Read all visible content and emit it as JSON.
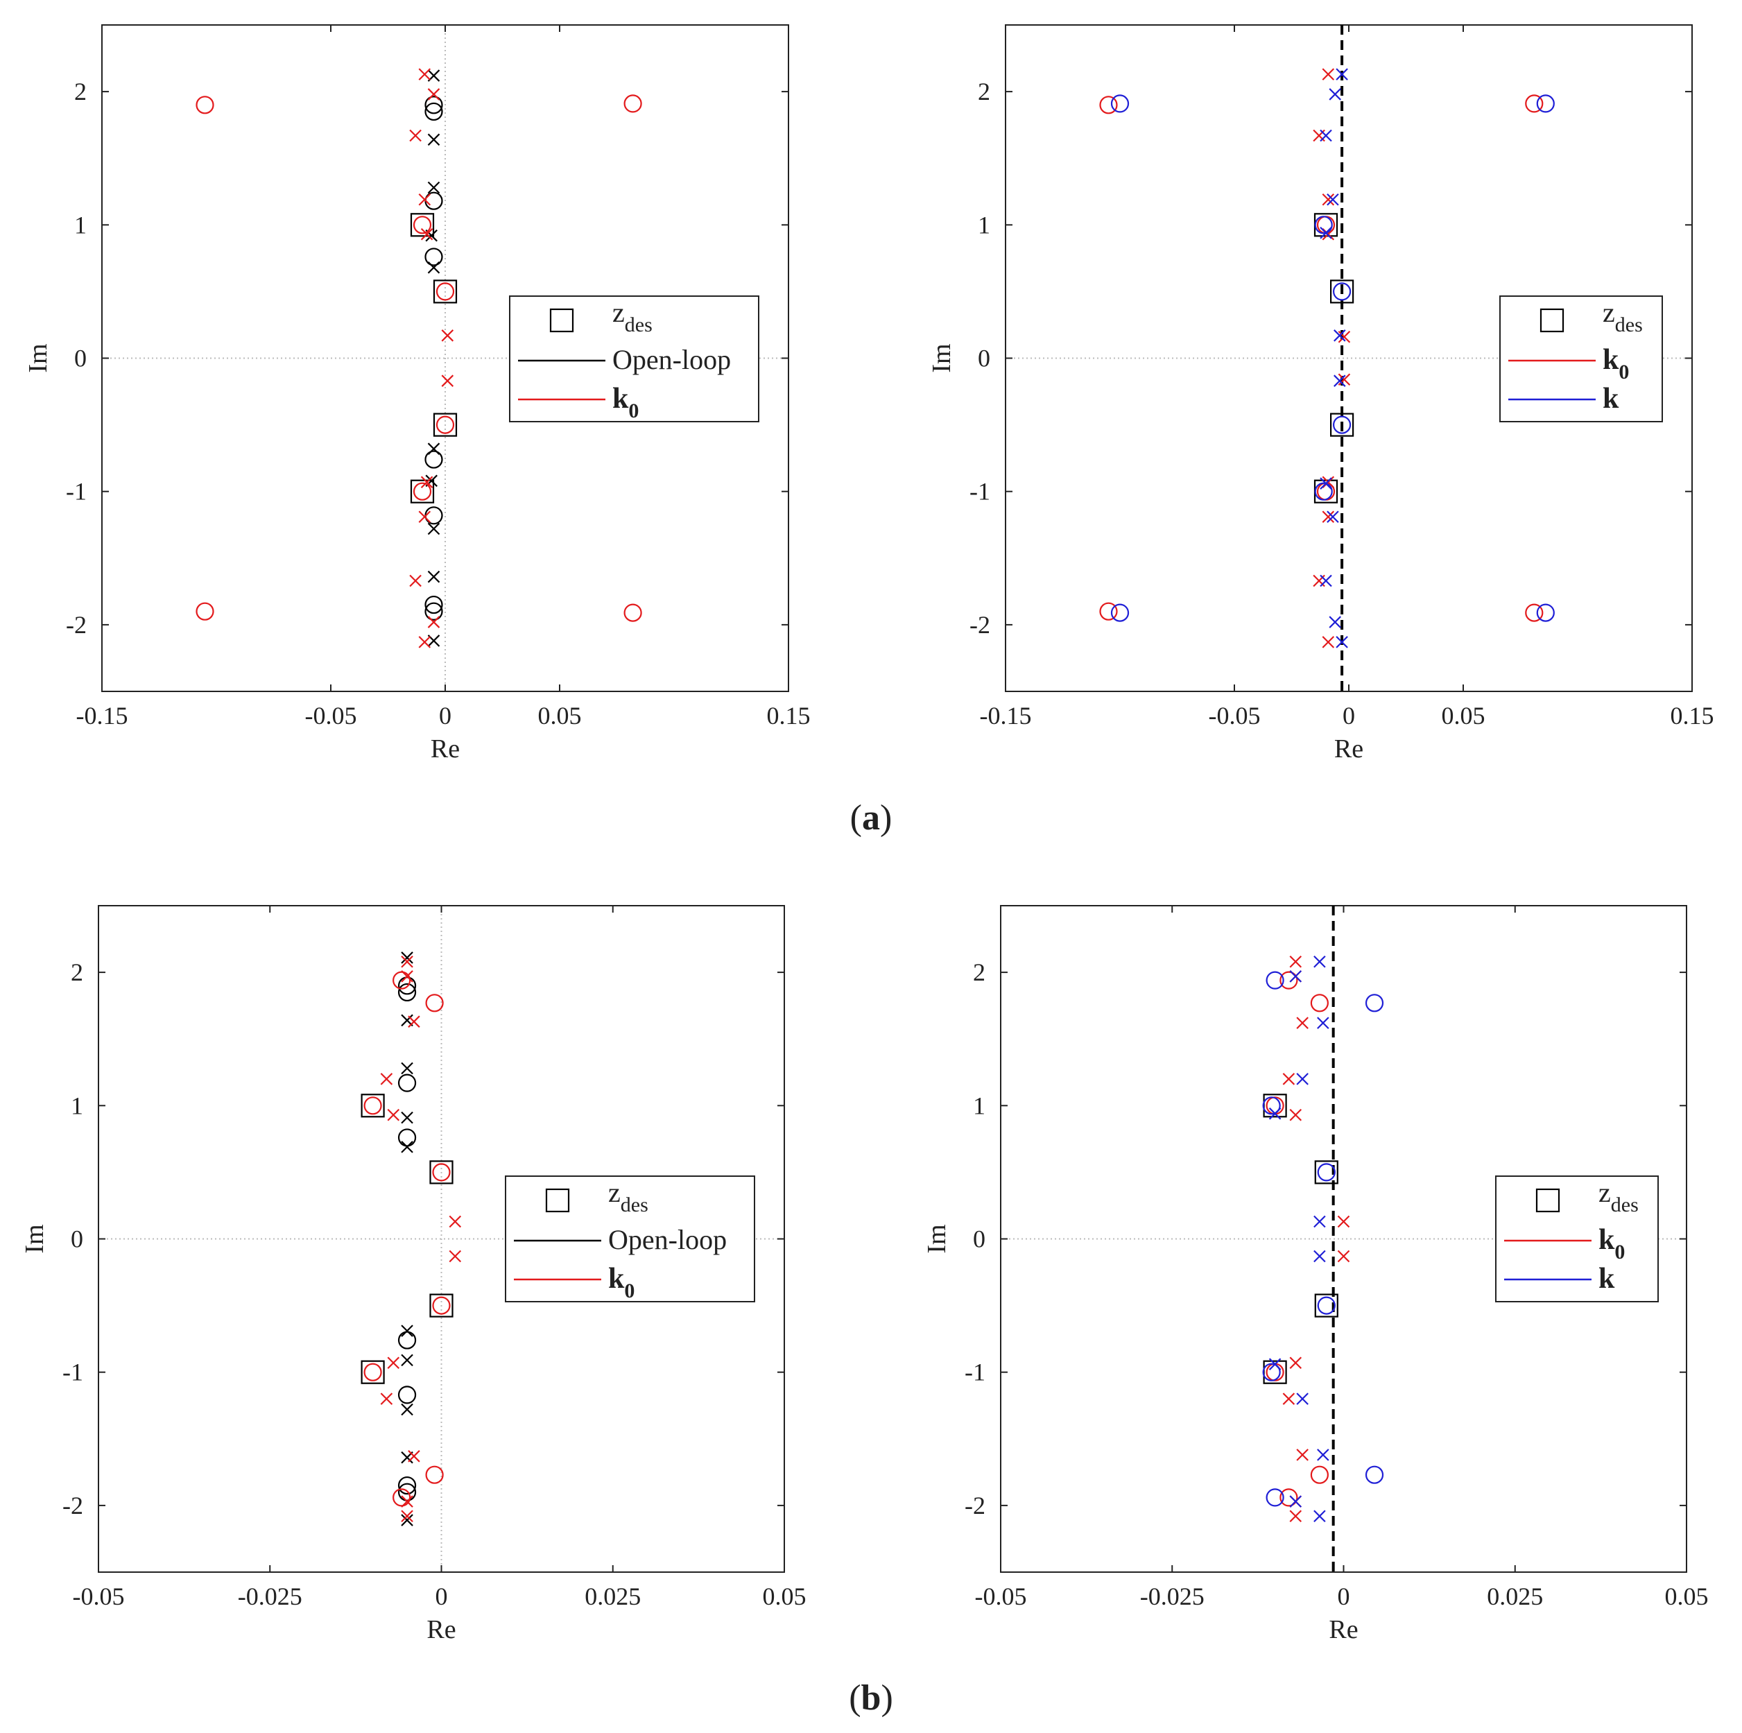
{
  "captions": [
    {
      "open": "(",
      "letter": "a",
      "close": ")"
    },
    {
      "open": "(",
      "letter": "b",
      "close": ")"
    }
  ],
  "colors": {
    "open_loop": "#000000",
    "k0": "#e31a1c",
    "k": "#1f1fd6",
    "zdes": "#000000",
    "axis": "#222222",
    "zero_line": "#bbbbbb"
  },
  "chart_data": [
    {
      "id": "a-left",
      "type": "scatter",
      "xlabel": "Re",
      "ylabel": "Im",
      "xlim": [
        -0.15,
        0.15
      ],
      "ylim": [
        -2.5,
        2.5
      ],
      "xticks": [
        -0.15,
        -0.05,
        0,
        0.05,
        0.15
      ],
      "xtick_labels": [
        "-0.15",
        "-0.05",
        "0",
        "0.05",
        "0.15"
      ],
      "yticks": [
        -2,
        -1,
        0,
        1,
        2
      ],
      "ytick_labels": [
        "-2",
        "-1",
        "0",
        "1",
        "2"
      ],
      "dashed_vline": null,
      "legend": [
        {
          "marker": "square",
          "color": "#000000",
          "label": "z",
          "sub": "des",
          "bold": false
        },
        {
          "marker": "line",
          "color": "#000000",
          "label": "Open-loop",
          "sub": "",
          "bold": false
        },
        {
          "marker": "line",
          "color": "#e31a1c",
          "label": "k",
          "sub": "0",
          "bold": true
        }
      ],
      "series": [
        {
          "name": "z_des",
          "marker": "square",
          "color": "#000000",
          "points": [
            [
              -0.01,
              1.0
            ],
            [
              -0.01,
              -1.0
            ],
            [
              0.0,
              0.5
            ],
            [
              0.0,
              -0.5
            ]
          ]
        },
        {
          "name": "Open-loop poles",
          "marker": "x",
          "color": "#000000",
          "points": [
            [
              -0.005,
              2.12
            ],
            [
              -0.005,
              -2.12
            ],
            [
              -0.005,
              1.64
            ],
            [
              -0.005,
              -1.64
            ],
            [
              -0.005,
              1.28
            ],
            [
              -0.005,
              -1.28
            ],
            [
              -0.006,
              0.92
            ],
            [
              -0.006,
              -0.92
            ],
            [
              -0.005,
              0.68
            ],
            [
              -0.005,
              -0.68
            ]
          ]
        },
        {
          "name": "Open-loop zeros",
          "marker": "circle",
          "color": "#000000",
          "points": [
            [
              -0.005,
              1.9
            ],
            [
              -0.005,
              -1.9
            ],
            [
              -0.005,
              1.85
            ],
            [
              -0.005,
              -1.85
            ],
            [
              -0.005,
              1.18
            ],
            [
              -0.005,
              -1.18
            ],
            [
              -0.005,
              0.76
            ],
            [
              -0.005,
              -0.76
            ]
          ]
        },
        {
          "name": "k0 poles",
          "marker": "x",
          "color": "#e31a1c",
          "points": [
            [
              -0.009,
              2.13
            ],
            [
              -0.009,
              -2.13
            ],
            [
              -0.005,
              1.98
            ],
            [
              -0.005,
              -1.98
            ],
            [
              -0.013,
              1.67
            ],
            [
              -0.013,
              -1.67
            ],
            [
              -0.009,
              1.19
            ],
            [
              -0.009,
              -1.19
            ],
            [
              -0.008,
              0.93
            ],
            [
              -0.008,
              -0.93
            ],
            [
              0.001,
              0.17
            ],
            [
              0.001,
              -0.17
            ]
          ]
        },
        {
          "name": "k0 zeros",
          "marker": "circle",
          "color": "#e31a1c",
          "points": [
            [
              -0.105,
              1.9
            ],
            [
              -0.105,
              -1.9
            ],
            [
              0.082,
              1.91
            ],
            [
              0.082,
              -1.91
            ],
            [
              -0.01,
              1.0
            ],
            [
              -0.01,
              -1.0
            ],
            [
              0.0,
              0.5
            ],
            [
              0.0,
              -0.5
            ]
          ]
        }
      ]
    },
    {
      "id": "a-right",
      "type": "scatter",
      "xlabel": "Re",
      "ylabel": "Im",
      "xlim": [
        -0.15,
        0.15
      ],
      "ylim": [
        -2.5,
        2.5
      ],
      "xticks": [
        -0.15,
        -0.05,
        0,
        0.05,
        0.15
      ],
      "xtick_labels": [
        "-0.15",
        "-0.05",
        "0",
        "0.05",
        "0.15"
      ],
      "yticks": [
        -2,
        -1,
        0,
        1,
        2
      ],
      "ytick_labels": [
        "-2",
        "-1",
        "0",
        "1",
        "2"
      ],
      "dashed_vline": -0.003,
      "legend": [
        {
          "marker": "square",
          "color": "#000000",
          "label": "z",
          "sub": "des",
          "bold": false
        },
        {
          "marker": "line",
          "color": "#e31a1c",
          "label": "k",
          "sub": "0",
          "bold": true
        },
        {
          "marker": "line",
          "color": "#1f1fd6",
          "label": "k",
          "sub": "",
          "bold": true
        }
      ],
      "series": [
        {
          "name": "z_des",
          "marker": "square",
          "color": "#000000",
          "points": [
            [
              -0.01,
              1.0
            ],
            [
              -0.01,
              -1.0
            ],
            [
              -0.003,
              0.5
            ],
            [
              -0.003,
              -0.5
            ]
          ]
        },
        {
          "name": "k0 poles",
          "marker": "x",
          "color": "#e31a1c",
          "points": [
            [
              -0.009,
              2.13
            ],
            [
              -0.009,
              -2.13
            ],
            [
              -0.013,
              1.67
            ],
            [
              -0.013,
              -1.67
            ],
            [
              -0.009,
              1.19
            ],
            [
              -0.009,
              -1.19
            ],
            [
              -0.009,
              0.93
            ],
            [
              -0.009,
              -0.93
            ],
            [
              -0.002,
              0.16
            ],
            [
              -0.002,
              -0.16
            ]
          ]
        },
        {
          "name": "k0 zeros",
          "marker": "circle",
          "color": "#e31a1c",
          "points": [
            [
              -0.105,
              1.9
            ],
            [
              -0.105,
              -1.9
            ],
            [
              0.081,
              1.91
            ],
            [
              0.081,
              -1.91
            ],
            [
              -0.01,
              1.0
            ],
            [
              -0.01,
              -1.0
            ]
          ]
        },
        {
          "name": "k poles",
          "marker": "x",
          "color": "#1f1fd6",
          "points": [
            [
              -0.003,
              2.13
            ],
            [
              -0.003,
              -2.13
            ],
            [
              -0.006,
              1.98
            ],
            [
              -0.006,
              -1.98
            ],
            [
              -0.01,
              1.67
            ],
            [
              -0.01,
              -1.67
            ],
            [
              -0.007,
              1.19
            ],
            [
              -0.007,
              -1.19
            ],
            [
              -0.01,
              0.94
            ],
            [
              -0.01,
              -0.94
            ],
            [
              -0.004,
              0.17
            ],
            [
              -0.004,
              -0.17
            ]
          ]
        },
        {
          "name": "k zeros",
          "marker": "circle",
          "color": "#1f1fd6",
          "points": [
            [
              -0.1,
              1.91
            ],
            [
              -0.1,
              -1.91
            ],
            [
              0.086,
              1.91
            ],
            [
              0.086,
              -1.91
            ],
            [
              -0.011,
              1.0
            ],
            [
              -0.011,
              -1.0
            ],
            [
              -0.003,
              0.5
            ],
            [
              -0.003,
              -0.5
            ]
          ]
        }
      ]
    },
    {
      "id": "b-left",
      "type": "scatter",
      "xlabel": "Re",
      "ylabel": "Im",
      "xlim": [
        -0.05,
        0.05
      ],
      "ylim": [
        -2.5,
        2.5
      ],
      "xticks": [
        -0.05,
        -0.025,
        0,
        0.025,
        0.05
      ],
      "xtick_labels": [
        "-0.05",
        "-0.025",
        "0",
        "0.025",
        "0.05"
      ],
      "yticks": [
        -2,
        -1,
        0,
        1,
        2
      ],
      "ytick_labels": [
        "-2",
        "-1",
        "0",
        "1",
        "2"
      ],
      "dashed_vline": null,
      "legend": [
        {
          "marker": "square",
          "color": "#000000",
          "label": "z",
          "sub": "des",
          "bold": false
        },
        {
          "marker": "line",
          "color": "#000000",
          "label": "Open-loop",
          "sub": "",
          "bold": false
        },
        {
          "marker": "line",
          "color": "#e31a1c",
          "label": "k",
          "sub": "0",
          "bold": true
        }
      ],
      "series": [
        {
          "name": "z_des",
          "marker": "square",
          "color": "#000000",
          "points": [
            [
              -0.01,
              1.0
            ],
            [
              -0.01,
              -1.0
            ],
            [
              0.0,
              0.5
            ],
            [
              0.0,
              -0.5
            ]
          ]
        },
        {
          "name": "Open-loop poles",
          "marker": "x",
          "color": "#000000",
          "points": [
            [
              -0.005,
              2.11
            ],
            [
              -0.005,
              -2.11
            ],
            [
              -0.005,
              1.64
            ],
            [
              -0.005,
              -1.64
            ],
            [
              -0.005,
              1.28
            ],
            [
              -0.005,
              -1.28
            ],
            [
              -0.005,
              0.91
            ],
            [
              -0.005,
              -0.91
            ],
            [
              -0.005,
              0.69
            ],
            [
              -0.005,
              -0.69
            ]
          ]
        },
        {
          "name": "Open-loop zeros",
          "marker": "circle",
          "color": "#000000",
          "points": [
            [
              -0.005,
              1.9
            ],
            [
              -0.005,
              -1.9
            ],
            [
              -0.005,
              1.85
            ],
            [
              -0.005,
              -1.85
            ],
            [
              -0.005,
              1.17
            ],
            [
              -0.005,
              -1.17
            ],
            [
              -0.005,
              0.76
            ],
            [
              -0.005,
              -0.76
            ]
          ]
        },
        {
          "name": "k0 poles",
          "marker": "x",
          "color": "#e31a1c",
          "points": [
            [
              -0.005,
              2.08
            ],
            [
              -0.005,
              -2.08
            ],
            [
              -0.005,
              1.97
            ],
            [
              -0.005,
              -1.97
            ],
            [
              -0.004,
              1.63
            ],
            [
              -0.004,
              -1.63
            ],
            [
              -0.008,
              1.2
            ],
            [
              -0.008,
              -1.2
            ],
            [
              -0.007,
              0.93
            ],
            [
              -0.007,
              -0.93
            ],
            [
              0.002,
              0.13
            ],
            [
              0.002,
              -0.13
            ]
          ]
        },
        {
          "name": "k0 zeros",
          "marker": "circle",
          "color": "#e31a1c",
          "points": [
            [
              -0.0058,
              1.94
            ],
            [
              -0.0058,
              -1.94
            ],
            [
              -0.001,
              1.77
            ],
            [
              -0.001,
              -1.77
            ],
            [
              -0.01,
              1.0
            ],
            [
              -0.01,
              -1.0
            ],
            [
              0.0,
              0.5
            ],
            [
              0.0,
              -0.5
            ]
          ]
        }
      ]
    },
    {
      "id": "b-right",
      "type": "scatter",
      "xlabel": "Re",
      "ylabel": "Im",
      "xlim": [
        -0.05,
        0.05
      ],
      "ylim": [
        -2.5,
        2.5
      ],
      "xticks": [
        -0.05,
        -0.025,
        0,
        0.025,
        0.05
      ],
      "xtick_labels": [
        "-0.05",
        "-0.025",
        "0",
        "0.025",
        "0.05"
      ],
      "yticks": [
        -2,
        -1,
        0,
        1,
        2
      ],
      "ytick_labels": [
        "-2",
        "-1",
        "0",
        "1",
        "2"
      ],
      "dashed_vline": -0.0015,
      "legend": [
        {
          "marker": "square",
          "color": "#000000",
          "label": "z",
          "sub": "des",
          "bold": false
        },
        {
          "marker": "line",
          "color": "#e31a1c",
          "label": "k",
          "sub": "0",
          "bold": true
        },
        {
          "marker": "line",
          "color": "#1f1fd6",
          "label": "k",
          "sub": "",
          "bold": true
        }
      ],
      "series": [
        {
          "name": "z_des",
          "marker": "square",
          "color": "#000000",
          "points": [
            [
              -0.01,
              1.0
            ],
            [
              -0.01,
              -1.0
            ],
            [
              -0.0025,
              0.5
            ],
            [
              -0.0025,
              -0.5
            ]
          ]
        },
        {
          "name": "k0 poles",
          "marker": "x",
          "color": "#e31a1c",
          "points": [
            [
              -0.007,
              2.08
            ],
            [
              -0.007,
              -2.08
            ],
            [
              -0.007,
              1.97
            ],
            [
              -0.007,
              -1.97
            ],
            [
              -0.006,
              1.62
            ],
            [
              -0.006,
              -1.62
            ],
            [
              -0.008,
              1.2
            ],
            [
              -0.008,
              -1.2
            ],
            [
              -0.007,
              0.93
            ],
            [
              -0.007,
              -0.93
            ],
            [
              0.0,
              0.13
            ],
            [
              0.0,
              -0.13
            ]
          ]
        },
        {
          "name": "k0 zeros",
          "marker": "circle",
          "color": "#e31a1c",
          "points": [
            [
              -0.008,
              1.94
            ],
            [
              -0.008,
              -1.94
            ],
            [
              -0.0035,
              1.77
            ],
            [
              -0.0035,
              -1.77
            ],
            [
              -0.01,
              1.0
            ],
            [
              -0.01,
              -1.0
            ]
          ]
        },
        {
          "name": "k poles",
          "marker": "x",
          "color": "#1f1fd6",
          "points": [
            [
              -0.0035,
              2.08
            ],
            [
              -0.0035,
              -2.08
            ],
            [
              -0.007,
              1.97
            ],
            [
              -0.007,
              -1.97
            ],
            [
              -0.003,
              1.62
            ],
            [
              -0.003,
              -1.62
            ],
            [
              -0.006,
              1.2
            ],
            [
              -0.006,
              -1.2
            ],
            [
              -0.01,
              0.94
            ],
            [
              -0.01,
              -0.94
            ],
            [
              -0.0035,
              0.13
            ],
            [
              -0.0035,
              -0.13
            ]
          ]
        },
        {
          "name": "k zeros",
          "marker": "circle",
          "color": "#1f1fd6",
          "points": [
            [
              -0.01,
              1.94
            ],
            [
              -0.01,
              -1.94
            ],
            [
              0.0045,
              1.77
            ],
            [
              0.0045,
              -1.77
            ],
            [
              -0.0105,
              1.0
            ],
            [
              -0.0105,
              -1.0
            ],
            [
              -0.0025,
              0.5
            ],
            [
              -0.0025,
              -0.5
            ]
          ]
        }
      ]
    }
  ]
}
